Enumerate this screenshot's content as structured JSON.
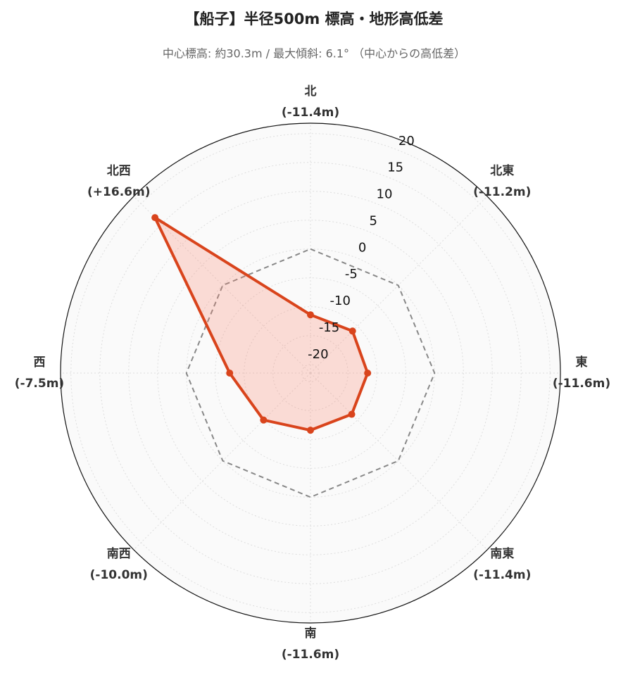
{
  "chart_data": {
    "type": "radar",
    "title": "【船子】半径500m 標高・地形高低差",
    "subtitle": "中心標高: 約30.3m / 最大傾斜: 6.1° （中心からの高低差）",
    "categories": [
      "北",
      "北東",
      "東",
      "南東",
      "南",
      "南西",
      "西",
      "北西"
    ],
    "values": [
      -11.4,
      -11.2,
      -11.6,
      -11.4,
      -11.6,
      -10.0,
      -7.5,
      16.6
    ],
    "value_labels": [
      "(-11.4m)",
      "(-11.2m)",
      "(-11.6m)",
      "(-11.4m)",
      "(-11.6m)",
      "(-10.0m)",
      "(-7.5m)",
      "(+16.6m)"
    ],
    "color": "#d9441c",
    "fill": "rgba(250,128,104,0.25)",
    "ylim": [
      -21.5,
      21.8
    ],
    "yticks": [
      -20,
      -15,
      -10,
      -5,
      0,
      5,
      10,
      15,
      20
    ],
    "reference_line": {
      "value": 0,
      "color": "#888888"
    },
    "grid": true
  }
}
